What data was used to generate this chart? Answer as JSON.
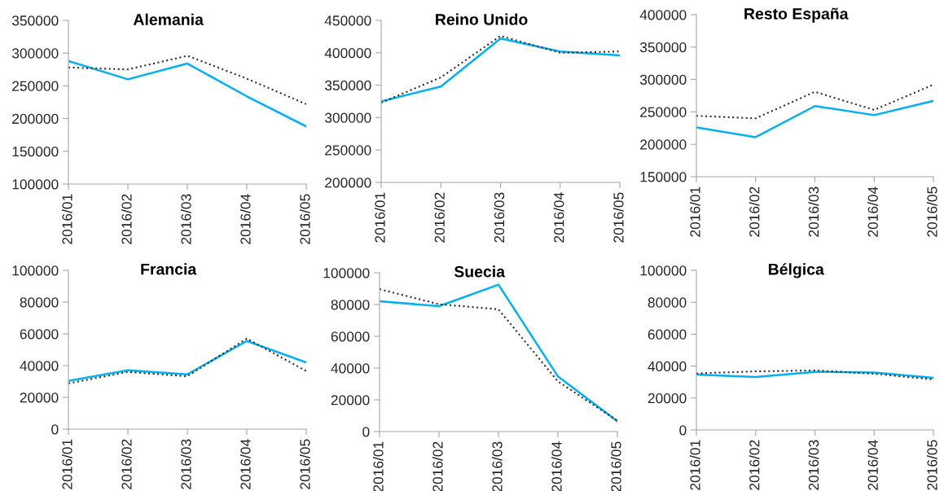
{
  "chart_data": [
    {
      "type": "line",
      "title": "Alemania",
      "categories": [
        "2016/01",
        "2016/02",
        "2016/03",
        "2016/04",
        "2016/05"
      ],
      "ylim": [
        100000,
        350000
      ],
      "yticks": [
        100000,
        150000,
        200000,
        250000,
        300000,
        350000
      ],
      "series": [
        {
          "color": "#00b0f0",
          "line_style": "solid",
          "values": [
            288000,
            260000,
            284000,
            234000,
            188000
          ]
        },
        {
          "color": "#303030",
          "line_style": "dotted",
          "values": [
            278000,
            275000,
            296000,
            261000,
            222000
          ]
        }
      ]
    },
    {
      "type": "line",
      "title": "Reino Unido",
      "categories": [
        "2016/01",
        "2016/02",
        "2016/03",
        "2016/04",
        "2016/05"
      ],
      "ylim": [
        200000,
        450000
      ],
      "yticks": [
        200000,
        250000,
        300000,
        350000,
        400000,
        450000
      ],
      "series": [
        {
          "color": "#00b0f0",
          "line_style": "solid",
          "values": [
            325000,
            348000,
            422000,
            402000,
            396000
          ]
        },
        {
          "color": "#303030",
          "line_style": "dotted",
          "values": [
            323000,
            362000,
            426000,
            400000,
            402000
          ]
        }
      ]
    },
    {
      "type": "line",
      "title": "Resto España",
      "categories": [
        "2016/01",
        "2016/02",
        "2016/03",
        "2016/04",
        "2016/05"
      ],
      "ylim": [
        150000,
        400000
      ],
      "yticks": [
        150000,
        200000,
        250000,
        300000,
        350000,
        400000
      ],
      "series": [
        {
          "color": "#00b0f0",
          "line_style": "solid",
          "values": [
            226000,
            211000,
            259000,
            245000,
            267000
          ]
        },
        {
          "color": "#303030",
          "line_style": "dotted",
          "values": [
            244000,
            240000,
            281000,
            253000,
            292000
          ]
        }
      ]
    },
    {
      "type": "line",
      "title": "Francia",
      "categories": [
        "2016/01",
        "2016/02",
        "2016/03",
        "2016/04",
        "2016/05"
      ],
      "ylim": [
        0,
        100000
      ],
      "yticks": [
        0,
        20000,
        40000,
        60000,
        80000,
        100000
      ],
      "series": [
        {
          "color": "#00b0f0",
          "line_style": "solid",
          "values": [
            30400,
            37000,
            34500,
            55500,
            42000
          ]
        },
        {
          "color": "#303030",
          "line_style": "dotted",
          "values": [
            28800,
            36000,
            33300,
            57000,
            36600
          ]
        }
      ]
    },
    {
      "type": "line",
      "title": "Suecia",
      "categories": [
        "2016/01",
        "2016/02",
        "2016/03",
        "2016/04",
        "2016/05"
      ],
      "ylim": [
        0,
        100000
      ],
      "yticks": [
        0,
        20000,
        40000,
        60000,
        80000,
        100000
      ],
      "series": [
        {
          "color": "#00b0f0",
          "line_style": "solid",
          "values": [
            82000,
            79000,
            92500,
            34700,
            6500
          ]
        },
        {
          "color": "#303030",
          "line_style": "dotted",
          "values": [
            89700,
            80200,
            77000,
            31600,
            6800
          ]
        }
      ]
    },
    {
      "type": "line",
      "title": "Bélgica",
      "categories": [
        "2016/01",
        "2016/02",
        "2016/03",
        "2016/04",
        "2016/05"
      ],
      "ylim": [
        0,
        100000
      ],
      "yticks": [
        0,
        20000,
        40000,
        60000,
        80000,
        100000
      ],
      "series": [
        {
          "color": "#00b0f0",
          "line_style": "solid",
          "values": [
            34700,
            33200,
            36400,
            36000,
            32600
          ]
        },
        {
          "color": "#303030",
          "line_style": "dotted",
          "values": [
            35400,
            36700,
            37300,
            35200,
            31600
          ]
        }
      ]
    }
  ]
}
